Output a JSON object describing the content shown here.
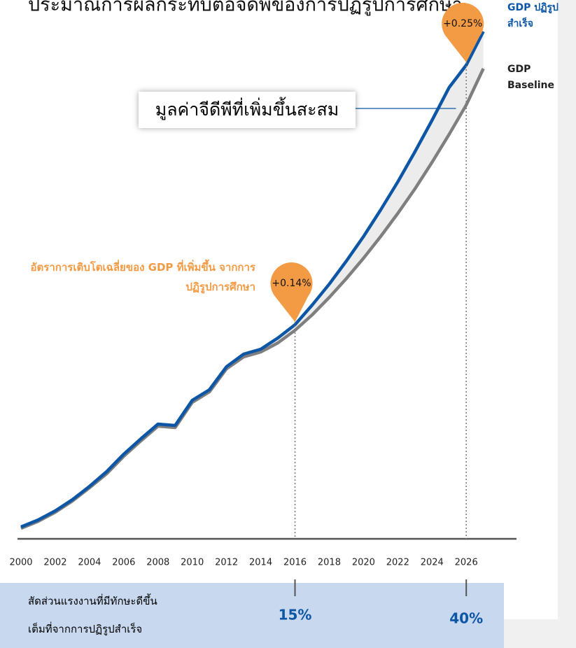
{
  "chart_data": {
    "type": "line",
    "title": "ประมาณการผลกระทบต่อจีดีพีของการปฏิรูปการศึกษา",
    "x": [
      2000,
      2001,
      2002,
      2003,
      2004,
      2005,
      2006,
      2007,
      2008,
      2009,
      2010,
      2011,
      2012,
      2013,
      2014,
      2015,
      2016,
      2017,
      2018,
      2019,
      2020,
      2021,
      2022,
      2023,
      2024,
      2025,
      2026,
      2027
    ],
    "series": [
      {
        "name": "GDP ปฏิรูปสำเร็จ",
        "color": "#0d56a6",
        "values": [
          17,
          27,
          40,
          56,
          75,
          96,
          121,
          143,
          164,
          162,
          198,
          213,
          246,
          264,
          271,
          287,
          306,
          334,
          364,
          397,
          432,
          470,
          510,
          553,
          598,
          645,
          677,
          725
        ]
      },
      {
        "name": "GDP Baseline",
        "color": "#7f7f7f",
        "values": [
          15,
          25,
          38,
          54,
          73,
          93,
          118,
          140,
          161,
          159,
          195,
          210,
          243,
          260,
          267,
          280,
          298,
          320,
          345,
          372,
          401,
          432,
          465,
          500,
          538,
          578,
          620,
          672
        ]
      }
    ],
    "xlim": [
      2000,
      2027.3
    ],
    "ylim": [
      0,
      730
    ],
    "xticks": [
      2000,
      2002,
      2004,
      2006,
      2008,
      2010,
      2012,
      2014,
      2016,
      2018,
      2020,
      2022,
      2024,
      2026
    ],
    "area_label": "มูลค่าจีดีพีที่เพิ่มขึ้นสะสม",
    "growth_label": "อัตราการเติบโตเฉลี่ยของ GDP ที่เพิ่มขึ้น จากการปฏิรูปการศึกษา",
    "growth_color": "#f39a45",
    "pins": [
      {
        "x": 2016,
        "value": 0.14,
        "label": "+0.14%"
      },
      {
        "x": 2026,
        "value": 0.25,
        "label": "+0.25%"
      }
    ],
    "skill_share": {
      "label_lines": [
        "สัดส่วนแรงงานที่มีทักษะดีขึ้น",
        "เต็มที่จากการปฏิรูปสำเร็จ"
      ],
      "x": [
        2016,
        2026
      ],
      "values": [
        15,
        40
      ],
      "value_labels": [
        "15%",
        "40%"
      ]
    }
  }
}
